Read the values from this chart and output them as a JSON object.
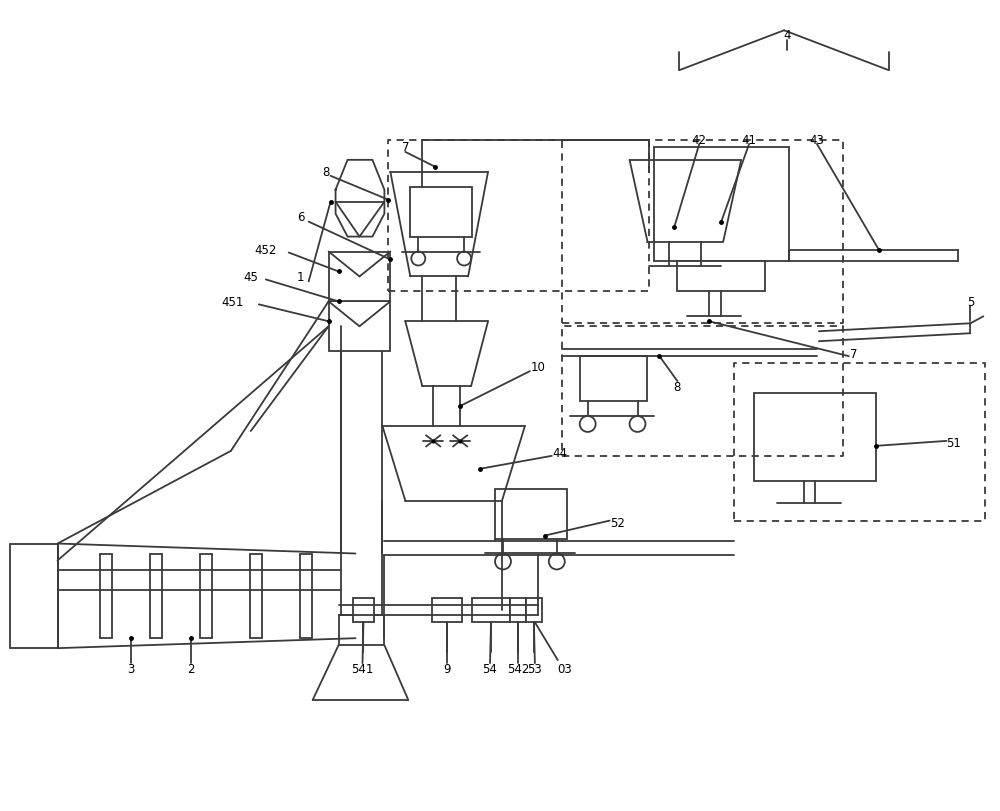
{
  "bg_color": "#ffffff",
  "line_color": "#3a3a3a",
  "lw": 1.3,
  "fig_w": 10.0,
  "fig_h": 8.12
}
